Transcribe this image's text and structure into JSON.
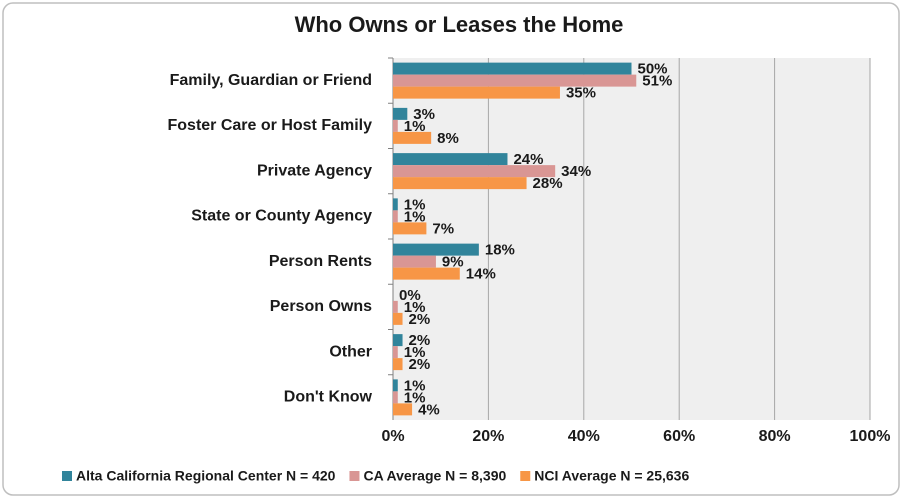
{
  "chart_data": {
    "type": "bar",
    "orientation": "horizontal",
    "title": "Who Owns or Leases the Home",
    "categories": [
      "Family, Guardian or Friend",
      "Foster Care or Host Family",
      "Private Agency",
      "State or County Agency",
      "Person Rents",
      "Person Owns",
      "Other",
      "Don't Know"
    ],
    "series": [
      {
        "name": "Alta California Regional Center N = 420",
        "color": "#31849b",
        "values": [
          50,
          3,
          24,
          1,
          18,
          0,
          2,
          1
        ],
        "value_labels": [
          "50%",
          "3%",
          "24%",
          "1%",
          "18%",
          "0%",
          "2%",
          "1%"
        ]
      },
      {
        "name": "CA Average N = 8,390",
        "color": "#d99694",
        "values": [
          51,
          1,
          34,
          1,
          9,
          1,
          1,
          1
        ],
        "value_labels": [
          "51%",
          "1%",
          "34%",
          "1%",
          "9%",
          "1%",
          "1%",
          "1%"
        ]
      },
      {
        "name": "NCI Average N = 25,636",
        "color": "#f79646",
        "values": [
          35,
          8,
          28,
          7,
          14,
          2,
          2,
          4
        ],
        "value_labels": [
          "35%",
          "8%",
          "28%",
          "7%",
          "14%",
          "2%",
          "2%",
          "4%"
        ]
      }
    ],
    "xlim": [
      0,
      100
    ],
    "xticks": [
      {
        "value": 0,
        "label": "0%"
      },
      {
        "value": 20,
        "label": "20%"
      },
      {
        "value": 40,
        "label": "40%"
      },
      {
        "value": 60,
        "label": "60%"
      },
      {
        "value": 80,
        "label": "80%"
      },
      {
        "value": 100,
        "label": "100%"
      }
    ],
    "grid": true,
    "legend": "bottom"
  }
}
